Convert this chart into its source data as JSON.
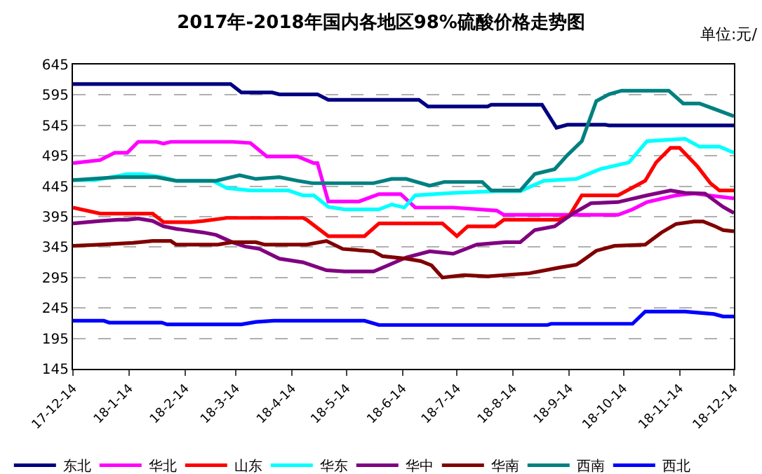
{
  "chart_data": {
    "type": "line",
    "title": "2017年-2018年国内各地区98%硫酸价格走势图",
    "annotations": [
      "单位:元/"
    ],
    "xlim": [
      "2017-12-14",
      "2018-12-14"
    ],
    "xticks": [
      {
        "value": "2017-12-14",
        "label": "17-12-14"
      },
      {
        "value": "2018-01-14",
        "label": "18-1-14"
      },
      {
        "value": "2018-02-14",
        "label": "18-2-14"
      },
      {
        "value": "2018-03-14",
        "label": "18-3-14"
      },
      {
        "value": "2018-04-14",
        "label": "18-4-14"
      },
      {
        "value": "2018-05-14",
        "label": "18-5-14"
      },
      {
        "value": "2018-06-14",
        "label": "18-6-14"
      },
      {
        "value": "2018-07-14",
        "label": "18-7-14"
      },
      {
        "value": "2018-08-14",
        "label": "18-8-14"
      },
      {
        "value": "2018-09-14",
        "label": "18-9-14"
      },
      {
        "value": "2018-10-14",
        "label": "18-10-14"
      },
      {
        "value": "2018-11-14",
        "label": "18-11-14"
      },
      {
        "value": "2018-12-14",
        "label": "18-12-14"
      }
    ],
    "ylim": [
      145,
      645
    ],
    "yticks": [
      145,
      195,
      245,
      295,
      345,
      395,
      445,
      495,
      545,
      595,
      645
    ],
    "grid": "y",
    "legend": "bottom",
    "marker": "none",
    "line_style": "solid",
    "series": [
      {
        "name": "东北",
        "color": "#000080",
        "x": [
          "2017-12-14",
          "2018-03-11",
          "2018-03-17",
          "2018-04-03",
          "2018-04-07",
          "2018-04-28",
          "2018-05-04",
          "2018-06-23",
          "2018-06-28",
          "2018-07-31",
          "2018-08-02",
          "2018-08-30",
          "2018-09-07",
          "2018-09-13",
          "2018-10-04",
          "2018-10-06",
          "2018-12-14"
        ],
        "values": [
          613,
          613,
          599,
          599,
          596,
          596,
          587,
          587,
          576,
          576,
          579,
          579,
          541,
          546,
          546,
          545,
          545
        ]
      },
      {
        "name": "华北",
        "color": "#ff00ff",
        "x": [
          "2017-12-14",
          "2017-12-29",
          "2018-01-06",
          "2018-01-13",
          "2018-01-19",
          "2018-01-29",
          "2018-02-02",
          "2018-02-06",
          "2018-03-12",
          "2018-03-22",
          "2018-03-31",
          "2018-04-17",
          "2018-04-26",
          "2018-04-28",
          "2018-05-04",
          "2018-05-21",
          "2018-06-01",
          "2018-06-13",
          "2018-06-21",
          "2018-07-12",
          "2018-08-05",
          "2018-08-09",
          "2018-10-11",
          "2018-10-19",
          "2018-10-27",
          "2018-11-12",
          "2018-11-22",
          "2018-12-14"
        ],
        "values": [
          483,
          488,
          500,
          500,
          518,
          518,
          515,
          518,
          518,
          516,
          494,
          494,
          483,
          483,
          420,
          420,
          432,
          432,
          410,
          410,
          405,
          398,
          398,
          407,
          419,
          430,
          433,
          425
        ]
      },
      {
        "name": "山东",
        "color": "#ff0000",
        "x": [
          "2017-12-14",
          "2017-12-29",
          "2018-01-27",
          "2018-02-02",
          "2018-02-17",
          "2018-02-24",
          "2018-03-09",
          "2018-04-20",
          "2018-04-22",
          "2018-05-04",
          "2018-05-24",
          "2018-06-01",
          "2018-07-06",
          "2018-07-14",
          "2018-07-20",
          "2018-08-04",
          "2018-08-09",
          "2018-09-08",
          "2018-09-14",
          "2018-09-21",
          "2018-10-11",
          "2018-10-26",
          "2018-11-01",
          "2018-11-09",
          "2018-11-14",
          "2018-11-24",
          "2018-12-01",
          "2018-12-06",
          "2018-12-14"
        ],
        "values": [
          410,
          400,
          400,
          386,
          386,
          388,
          393,
          393,
          390,
          363,
          363,
          384,
          384,
          363,
          379,
          379,
          390,
          390,
          396,
          430,
          430,
          454,
          484,
          508,
          508,
          477,
          450,
          438,
          438
        ]
      },
      {
        "name": "华东",
        "color": "#00ffff",
        "x": [
          "2017-12-14",
          "2017-12-26",
          "2018-01-06",
          "2018-01-13",
          "2018-01-21",
          "2018-02-01",
          "2018-02-09",
          "2018-03-01",
          "2018-03-09",
          "2018-03-22",
          "2018-04-12",
          "2018-04-20",
          "2018-04-26",
          "2018-05-04",
          "2018-05-13",
          "2018-06-01",
          "2018-06-08",
          "2018-06-15",
          "2018-06-21",
          "2018-07-12",
          "2018-08-05",
          "2018-08-18",
          "2018-08-31",
          "2018-09-18",
          "2018-10-01",
          "2018-10-17",
          "2018-10-27",
          "2018-11-17",
          "2018-11-25",
          "2018-12-06",
          "2018-12-14"
        ],
        "values": [
          455,
          455,
          461,
          465,
          465,
          460,
          454,
          454,
          442,
          438,
          438,
          430,
          430,
          411,
          407,
          407,
          415,
          410,
          430,
          434,
          437,
          437,
          454,
          457,
          473,
          484,
          519,
          523,
          510,
          510,
          500
        ]
      },
      {
        "name": "华中",
        "color": "#800080",
        "x": [
          "2017-12-14",
          "2017-12-29",
          "2018-01-08",
          "2018-01-13",
          "2018-01-19",
          "2018-01-27",
          "2018-02-02",
          "2018-02-09",
          "2018-02-24",
          "2018-03-03",
          "2018-03-12",
          "2018-03-19",
          "2018-03-27",
          "2018-04-07",
          "2018-04-20",
          "2018-05-03",
          "2018-05-13",
          "2018-05-29",
          "2018-06-06",
          "2018-06-16",
          "2018-06-29",
          "2018-07-12",
          "2018-07-25",
          "2018-08-10",
          "2018-08-18",
          "2018-08-26",
          "2018-09-06",
          "2018-09-16",
          "2018-09-26",
          "2018-10-11",
          "2018-10-27",
          "2018-11-09",
          "2018-11-17",
          "2018-11-28",
          "2018-12-08",
          "2018-12-14"
        ],
        "values": [
          384,
          388,
          390,
          390,
          392,
          388,
          379,
          375,
          369,
          365,
          353,
          346,
          342,
          326,
          320,
          307,
          305,
          305,
          315,
          328,
          338,
          334,
          349,
          353,
          353,
          373,
          379,
          400,
          417,
          419,
          430,
          438,
          434,
          433,
          411,
          401
        ]
      },
      {
        "name": "华南",
        "color": "#800000",
        "x": [
          "2017-12-14",
          "2017-12-29",
          "2018-01-16",
          "2018-01-27",
          "2018-02-06",
          "2018-02-09",
          "2018-03-04",
          "2018-03-12",
          "2018-03-25",
          "2018-03-30",
          "2018-04-22",
          "2018-05-03",
          "2018-05-12",
          "2018-05-29",
          "2018-06-03",
          "2018-06-16",
          "2018-06-24",
          "2018-06-30",
          "2018-07-06",
          "2018-07-18",
          "2018-07-31",
          "2018-08-23",
          "2018-09-08",
          "2018-09-18",
          "2018-09-21",
          "2018-09-29",
          "2018-10-09",
          "2018-10-26",
          "2018-11-04",
          "2018-11-12",
          "2018-11-22",
          "2018-11-27",
          "2018-12-03",
          "2018-12-08",
          "2018-12-14"
        ],
        "values": [
          347,
          349,
          352,
          355,
          355,
          349,
          349,
          353,
          353,
          349,
          349,
          355,
          342,
          338,
          330,
          326,
          322,
          315,
          295,
          299,
          297,
          302,
          311,
          316,
          322,
          339,
          347,
          349,
          369,
          383,
          387,
          387,
          380,
          373,
          371
        ]
      },
      {
        "name": "西南",
        "color": "#008080",
        "x": [
          "2017-12-14",
          "2018-01-08",
          "2018-01-29",
          "2018-02-09",
          "2018-03-03",
          "2018-03-16",
          "2018-03-25",
          "2018-04-07",
          "2018-04-17",
          "2018-04-25",
          "2018-05-29",
          "2018-06-08",
          "2018-06-16",
          "2018-06-29",
          "2018-07-07",
          "2018-07-28",
          "2018-08-02",
          "2018-08-18",
          "2018-08-26",
          "2018-09-06",
          "2018-09-13",
          "2018-09-21",
          "2018-09-29",
          "2018-10-06",
          "2018-10-13",
          "2018-11-08",
          "2018-11-16",
          "2018-11-25",
          "2018-12-14"
        ],
        "values": [
          455,
          460,
          460,
          454,
          454,
          463,
          457,
          460,
          454,
          450,
          450,
          457,
          457,
          446,
          452,
          452,
          438,
          438,
          465,
          473,
          496,
          519,
          585,
          596,
          602,
          602,
          581,
          581,
          560
        ]
      },
      {
        "name": "西北",
        "color": "#0000ff",
        "x": [
          "2017-12-14",
          "2017-12-31",
          "2018-01-03",
          "2018-02-01",
          "2018-02-04",
          "2018-03-17",
          "2018-03-25",
          "2018-04-04",
          "2018-05-24",
          "2018-06-01",
          "2018-09-02",
          "2018-09-04",
          "2018-10-19",
          "2018-10-26",
          "2018-11-17",
          "2018-12-03",
          "2018-12-08",
          "2018-12-14"
        ],
        "values": [
          224,
          224,
          221,
          221,
          218,
          218,
          222,
          224,
          224,
          217,
          217,
          219,
          219,
          239,
          239,
          235,
          231,
          231
        ]
      }
    ]
  }
}
